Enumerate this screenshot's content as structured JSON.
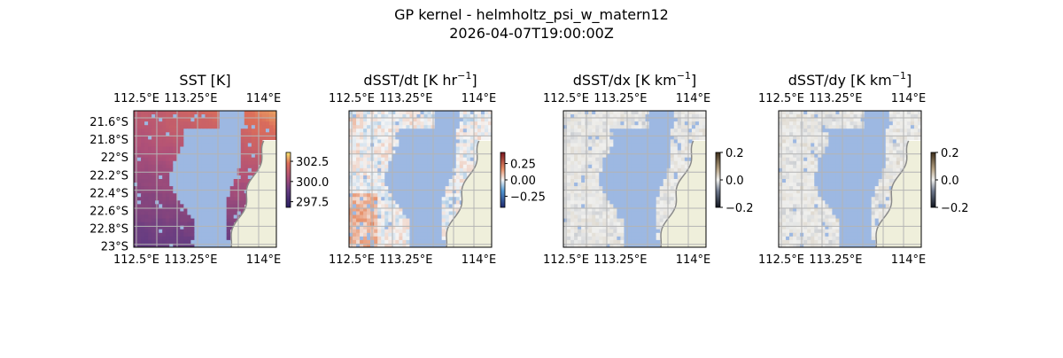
{
  "figure": {
    "title_line1": "GP kernel - helmholtz_psi_w_matern12",
    "title_line2": "2026-04-07T19:00:00Z"
  },
  "colors": {
    "ocean_mask": "#9db8e2",
    "land": "#efefdb",
    "coast": "#8a8a8a",
    "grid": "#b4b4b4",
    "frame": "#000000"
  },
  "chart_data": [
    {
      "type": "heatmap",
      "title_main": "SST [K]",
      "title_unit_sup": "",
      "title_close": "",
      "colormap": "thermal",
      "xticks": [
        "112.5°E",
        "113.25°E",
        "114°E"
      ],
      "yticks": [
        "21.6°S",
        "21.8°S",
        "22°S",
        "22.2°S",
        "22.4°S",
        "22.6°S",
        "22.8°S",
        "23°S"
      ],
      "show_yticks": true,
      "colorbar_ticks": [
        "302.5",
        "300.0",
        "297.5"
      ],
      "colorbar_values": [
        302.5,
        300.0,
        297.5
      ],
      "colorbar_range": [
        296.8,
        303.6
      ]
    },
    {
      "type": "heatmap",
      "title_main": "dSST/dt [K hr",
      "title_unit_sup": "−1",
      "title_close": "]",
      "colormap": "balance",
      "xticks": [
        "112.5°E",
        "113.25°E",
        "114°E"
      ],
      "yticks": [],
      "show_yticks": false,
      "colorbar_ticks": [
        "0.25",
        "0.00",
        "−0.25"
      ],
      "colorbar_values": [
        0.25,
        0.0,
        -0.25
      ],
      "colorbar_range": [
        -0.42,
        0.42
      ]
    },
    {
      "type": "heatmap",
      "title_main": "dSST/dx [K km",
      "title_unit_sup": "−1",
      "title_close": "]",
      "colormap": "diff",
      "xticks": [
        "112.5°E",
        "113.25°E",
        "114°E"
      ],
      "yticks": [],
      "show_yticks": false,
      "colorbar_ticks": [
        "0.2",
        "0.0",
        "−0.2"
      ],
      "colorbar_values": [
        0.2,
        0.0,
        -0.2
      ],
      "colorbar_range": [
        -0.2,
        0.2
      ]
    },
    {
      "type": "heatmap",
      "title_main": "dSST/dy [K km",
      "title_unit_sup": "−1",
      "title_close": "]",
      "colormap": "diff",
      "xticks": [
        "112.5°E",
        "113.25°E",
        "114°E"
      ],
      "yticks": [],
      "show_yticks": false,
      "colorbar_ticks": [
        "0.2",
        "0.0",
        "−0.2"
      ],
      "colorbar_values": [
        0.2,
        0.0,
        -0.2
      ],
      "colorbar_range": [
        -0.2,
        0.2
      ]
    }
  ]
}
